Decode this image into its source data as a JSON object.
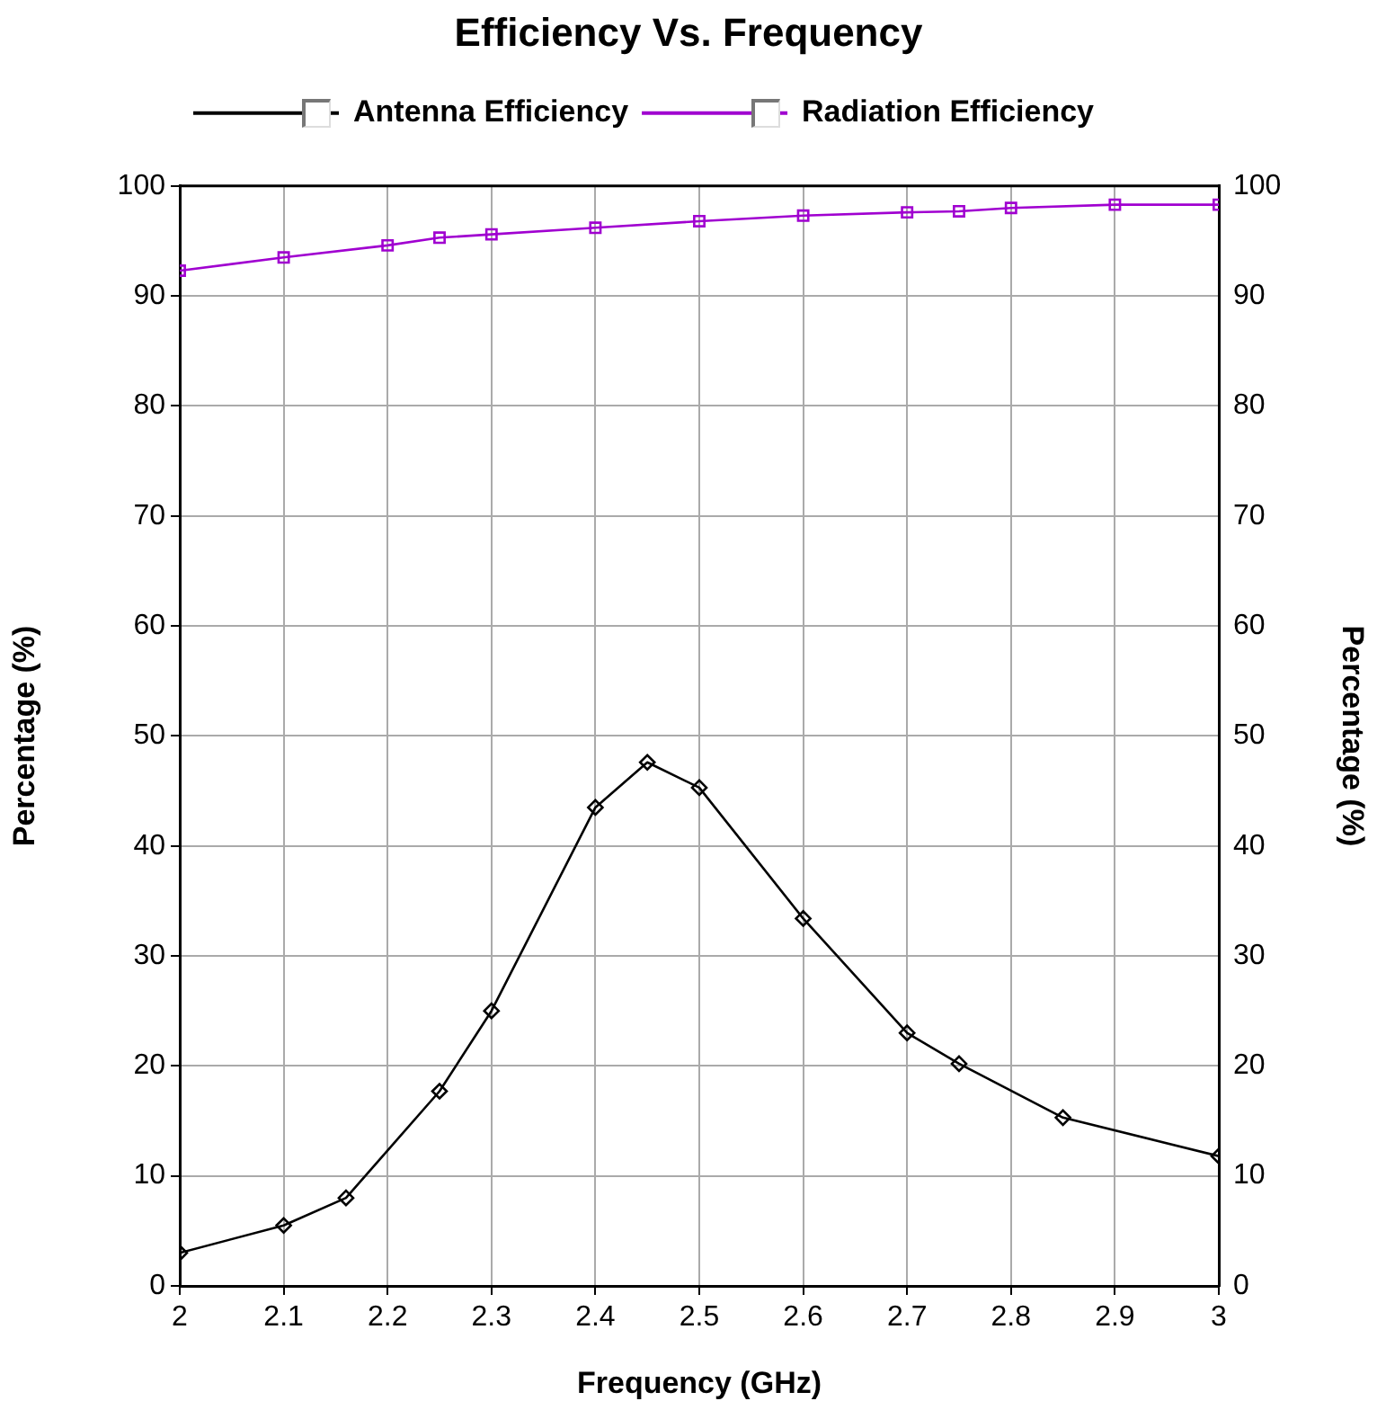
{
  "chart_data": {
    "type": "line",
    "title": "Efficiency Vs. Frequency",
    "xlabel": "Frequency (GHz)",
    "ylabel": "Percentage (%)",
    "y2label": "Percentage (%)",
    "xlim": [
      2,
      3
    ],
    "xticks": [
      2,
      2.1,
      2.2,
      2.3,
      2.4,
      2.5,
      2.6,
      2.7,
      2.8,
      2.9,
      3
    ],
    "ylim": [
      0,
      100
    ],
    "yticks": [
      0,
      10,
      20,
      30,
      40,
      50,
      60,
      70,
      80,
      90,
      100
    ],
    "y2lim": [
      0,
      100
    ],
    "y2ticks": [
      0,
      10,
      20,
      30,
      40,
      50,
      60,
      70,
      80,
      90,
      100
    ],
    "grid": true,
    "legend": "top left",
    "line_style": "solid",
    "series": [
      {
        "name": "Antenna Efficiency",
        "color": "#000000",
        "marker": "diamond",
        "x": [
          2,
          2.1,
          2.16,
          2.25,
          2.3,
          2.4,
          2.45,
          2.5,
          2.6,
          2.7,
          2.75,
          2.85,
          3
        ],
        "values": [
          3,
          5.5,
          8,
          17.7,
          25,
          43.5,
          47.6,
          45.3,
          33.4,
          23,
          20.2,
          15.3,
          11.8
        ]
      },
      {
        "name": "Radiation Efficiency",
        "color": "#a000d0",
        "marker": "square",
        "x": [
          2,
          2.1,
          2.2,
          2.25,
          2.3,
          2.4,
          2.5,
          2.6,
          2.7,
          2.75,
          2.8,
          2.9,
          3
        ],
        "values": [
          92.3,
          93.5,
          94.6,
          95.3,
          95.6,
          96.2,
          96.8,
          97.3,
          97.6,
          97.7,
          98,
          98.3,
          98.3
        ]
      }
    ]
  }
}
